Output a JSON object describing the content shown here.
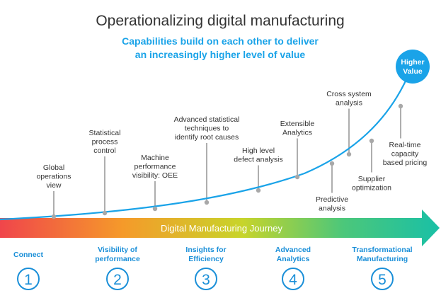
{
  "title": "Operationalizing digital manufacturing",
  "subtitle": {
    "line1": "Capabilities build on each other to deliver",
    "line2": "an increasingly higher level of value"
  },
  "endpoint": {
    "line1": "Higher",
    "line2": "Value"
  },
  "journey_label": "Digital Manufacturing Journey",
  "capabilities": [
    {
      "lines": [
        "Global",
        "operations",
        "view"
      ]
    },
    {
      "lines": [
        "Statistical",
        "process",
        "control"
      ]
    },
    {
      "lines": [
        "Machine",
        "performance",
        "visibility: OEE"
      ]
    },
    {
      "lines": [
        "Advanced statistical",
        "techniques to",
        "identify root causes"
      ]
    },
    {
      "lines": [
        "High level",
        "defect analysis"
      ]
    },
    {
      "lines": [
        "Extensible",
        "Analytics"
      ]
    },
    {
      "lines": [
        "Predictive",
        "analysis"
      ]
    },
    {
      "lines": [
        "Cross system",
        "analysis"
      ]
    },
    {
      "lines": [
        "Supplier",
        "optimization"
      ]
    },
    {
      "lines": [
        "Real-time",
        "capacity",
        "based pricing"
      ]
    }
  ],
  "stages": [
    {
      "number": "1",
      "lines": [
        "Connect"
      ]
    },
    {
      "number": "2",
      "lines": [
        "Visibility of",
        "performance"
      ]
    },
    {
      "number": "3",
      "lines": [
        "Insights for",
        "Efficiency"
      ]
    },
    {
      "number": "4",
      "lines": [
        "Advanced",
        "Analytics"
      ]
    },
    {
      "number": "5",
      "lines": [
        "Transformational",
        "Manufacturing"
      ]
    }
  ],
  "colors": {
    "accent_blue": "#1aa3e8",
    "stage_blue": "#1a8fd8",
    "title": "#333333",
    "text": "#333333",
    "connector": "#9a9a9a",
    "gradient": [
      "#f0454b",
      "#f59a2a",
      "#c8d42a",
      "#4cc77a",
      "#19c0a6"
    ]
  }
}
